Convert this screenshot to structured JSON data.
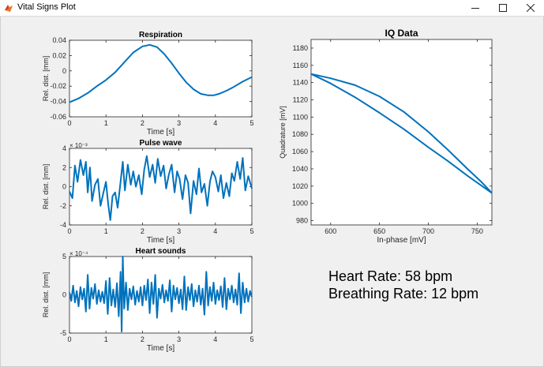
{
  "window": {
    "title": "Vital Signs Plot",
    "buttons": [
      "minimize",
      "maximize",
      "close"
    ]
  },
  "colors": {
    "line": "#0072bd",
    "axes_bg": "#ffffff",
    "figure_bg": "#f0f0f0"
  },
  "readouts": {
    "heart_rate": "Heart Rate: 58 bpm",
    "breathing_rate": "Breathing Rate: 12 bpm"
  },
  "chart_data": [
    {
      "id": "respiration",
      "type": "line",
      "title": "Respiration",
      "xlabel": "Time [s]",
      "ylabel": "Rel. dist. [mm]",
      "xlim": [
        0,
        5
      ],
      "ylim": [
        -0.06,
        0.04
      ],
      "xticks": [
        0,
        1,
        2,
        3,
        4,
        5
      ],
      "xtick_labels": [
        "0",
        "1",
        "2",
        "3",
        "4",
        "5"
      ],
      "yticks": [
        -0.06,
        -0.04,
        -0.02,
        0,
        0.02,
        0.04
      ],
      "ytick_labels": [
        "-0.06",
        "-0.04",
        "-0.02",
        "0",
        "0.02",
        "0.04"
      ],
      "exponent": "",
      "series": [
        {
          "x": [
            0,
            0.25,
            0.5,
            0.75,
            1.0,
            1.25,
            1.5,
            1.75,
            2.0,
            2.2,
            2.4,
            2.6,
            2.8,
            3.0,
            3.2,
            3.4,
            3.6,
            3.8,
            3.95,
            4.1,
            4.3,
            4.5,
            4.75,
            5.0
          ],
          "y": [
            -0.041,
            -0.036,
            -0.029,
            -0.02,
            -0.012,
            -0.002,
            0.011,
            0.024,
            0.032,
            0.034,
            0.031,
            0.022,
            0.01,
            -0.003,
            -0.015,
            -0.024,
            -0.03,
            -0.032,
            -0.032,
            -0.03,
            -0.026,
            -0.021,
            -0.014,
            -0.008
          ]
        }
      ]
    },
    {
      "id": "pulse-wave",
      "type": "line",
      "title": "Pulse wave",
      "xlabel": "Time [s]",
      "ylabel": "Rel. dist. [mm]",
      "xlim": [
        0,
        5
      ],
      "ylim": [
        -4,
        4
      ],
      "xticks": [
        0,
        1,
        2,
        3,
        4,
        5
      ],
      "xtick_labels": [
        "0",
        "1",
        "2",
        "3",
        "4",
        "5"
      ],
      "yticks": [
        -4,
        -2,
        0,
        2,
        4
      ],
      "ytick_labels": [
        "-4",
        "-2",
        "0",
        "2",
        "4"
      ],
      "exponent": "× 10⁻³",
      "series": [
        {
          "x": [
            0,
            0.08,
            0.15,
            0.22,
            0.3,
            0.38,
            0.45,
            0.5,
            0.56,
            0.62,
            0.7,
            0.78,
            0.85,
            0.92,
            1.0,
            1.06,
            1.12,
            1.18,
            1.25,
            1.32,
            1.4,
            1.46,
            1.52,
            1.6,
            1.68,
            1.75,
            1.82,
            1.9,
            1.98,
            2.05,
            2.12,
            2.2,
            2.28,
            2.35,
            2.42,
            2.5,
            2.58,
            2.65,
            2.72,
            2.8,
            2.88,
            2.95,
            3.02,
            3.1,
            3.18,
            3.25,
            3.32,
            3.4,
            3.48,
            3.55,
            3.62,
            3.7,
            3.78,
            3.85,
            3.92,
            4.0,
            4.08,
            4.15,
            4.22,
            4.3,
            4.38,
            4.45,
            4.52,
            4.6,
            4.68,
            4.75,
            4.82,
            4.9,
            5.0
          ],
          "y": [
            -0.5,
            -1.2,
            2.2,
            0.5,
            2.8,
            1.2,
            2.6,
            -0.6,
            2.0,
            -1.5,
            0.2,
            0.8,
            -2.0,
            -0.8,
            0.5,
            -1.8,
            -3.5,
            -1.0,
            -0.6,
            -2.2,
            0.5,
            2.6,
            -0.4,
            2.3,
            0.2,
            1.6,
            0.0,
            1.2,
            -0.8,
            1.8,
            3.2,
            1.0,
            2.3,
            0.4,
            2.9,
            1.1,
            2.2,
            -0.2,
            1.2,
            2.3,
            -0.6,
            1.6,
            0.8,
            -1.3,
            1.2,
            0.4,
            -2.8,
            0.6,
            -0.8,
            1.9,
            -0.6,
            0.3,
            -2.0,
            0.5,
            1.6,
            1.0,
            -0.5,
            1.2,
            -1.2,
            0.4,
            -1.0,
            1.4,
            0.6,
            2.6,
            0.8,
            3.0,
            -0.4,
            1.1,
            -0.2
          ]
        }
      ]
    },
    {
      "id": "heart-sounds",
      "type": "line",
      "title": "Heart sounds",
      "xlabel": "Time [s]",
      "ylabel": "Rel. dist. [mm]",
      "xlim": [
        0,
        5
      ],
      "ylim": [
        -5,
        5
      ],
      "xticks": [
        0,
        1,
        2,
        3,
        4,
        5
      ],
      "xtick_labels": [
        "0",
        "1",
        "2",
        "3",
        "4",
        "5"
      ],
      "yticks": [
        -5,
        0,
        5
      ],
      "ytick_labels": [
        "-5",
        "0",
        "5"
      ],
      "exponent": "× 10⁻⁴",
      "series": [
        {
          "x": [
            0,
            0.05,
            0.1,
            0.15,
            0.2,
            0.25,
            0.3,
            0.35,
            0.4,
            0.45,
            0.5,
            0.55,
            0.6,
            0.65,
            0.7,
            0.75,
            0.8,
            0.85,
            0.9,
            0.95,
            1.0,
            1.05,
            1.1,
            1.15,
            1.2,
            1.25,
            1.3,
            1.35,
            1.4,
            1.43,
            1.46,
            1.5,
            1.55,
            1.6,
            1.65,
            1.7,
            1.75,
            1.8,
            1.85,
            1.9,
            1.95,
            2.0,
            2.05,
            2.1,
            2.15,
            2.2,
            2.25,
            2.3,
            2.35,
            2.4,
            2.45,
            2.5,
            2.55,
            2.6,
            2.65,
            2.7,
            2.75,
            2.8,
            2.85,
            2.9,
            2.95,
            3.0,
            3.05,
            3.1,
            3.15,
            3.2,
            3.25,
            3.3,
            3.35,
            3.4,
            3.45,
            3.5,
            3.55,
            3.6,
            3.65,
            3.7,
            3.75,
            3.8,
            3.85,
            3.9,
            3.95,
            4.0,
            4.05,
            4.1,
            4.15,
            4.2,
            4.25,
            4.3,
            4.35,
            4.4,
            4.45,
            4.5,
            4.55,
            4.6,
            4.65,
            4.7,
            4.75,
            4.8,
            4.85,
            4.9,
            4.95,
            5.0
          ],
          "y": [
            0.3,
            -0.8,
            1.2,
            -1.0,
            0.5,
            -1.5,
            1.0,
            -0.6,
            0.8,
            -2.2,
            2.6,
            -1.8,
            0.9,
            -0.5,
            1.4,
            -1.2,
            0.6,
            -0.9,
            0.4,
            -1.1,
            1.8,
            -2.5,
            2.2,
            -1.4,
            0.7,
            -1.6,
            1.5,
            -2.8,
            3.0,
            -4.8,
            5.0,
            -1.8,
            1.6,
            -2.0,
            0.8,
            -0.6,
            1.1,
            -1.3,
            0.5,
            -0.9,
            1.0,
            -1.4,
            1.2,
            -0.7,
            2.0,
            -2.4,
            1.6,
            -1.2,
            2.6,
            -3.0,
            0.8,
            -0.5,
            1.3,
            -1.0,
            0.6,
            -0.8,
            1.9,
            -2.2,
            1.2,
            -0.6,
            0.9,
            -1.1,
            0.7,
            -1.9,
            2.4,
            -2.0,
            1.0,
            -0.7,
            1.4,
            -1.5,
            0.6,
            -0.9,
            1.2,
            -1.3,
            0.8,
            -2.6,
            3.0,
            -1.4,
            1.0,
            -0.8,
            1.6,
            -1.2,
            0.6,
            -0.7,
            1.1,
            -1.6,
            2.2,
            -1.9,
            0.8,
            -0.6,
            1.2,
            -1.0,
            0.7,
            -1.3,
            2.8,
            -2.4,
            1.6,
            -1.0,
            0.8,
            -0.9,
            0.5,
            -0.3
          ]
        }
      ]
    },
    {
      "id": "iq-data",
      "type": "line",
      "title": "IQ Data",
      "xlabel": "In-phase [mV]",
      "ylabel": "Quadrature [mV]",
      "xlim": [
        580,
        765
      ],
      "ylim": [
        975,
        1190
      ],
      "xticks": [
        600,
        650,
        700,
        750
      ],
      "xtick_labels": [
        "600",
        "650",
        "700",
        "750"
      ],
      "yticks": [
        980,
        1000,
        1020,
        1040,
        1060,
        1080,
        1100,
        1120,
        1140,
        1160,
        1180
      ],
      "ytick_labels": [
        "980",
        "1000",
        "1020",
        "1040",
        "1060",
        "1080",
        "1100",
        "1120",
        "1140",
        "1160",
        "1180"
      ],
      "exponent": "",
      "series": [
        {
          "x": [
            580,
            600,
            625,
            650,
            675,
            700,
            720,
            740,
            755,
            765
          ],
          "y": [
            1150,
            1145,
            1137,
            1124,
            1106,
            1083,
            1062,
            1040,
            1024,
            1012
          ]
        },
        {
          "x": [
            580,
            600,
            625,
            650,
            675,
            700,
            720,
            740,
            755,
            765
          ],
          "y": [
            1150,
            1139,
            1123,
            1105,
            1086,
            1065,
            1049,
            1032,
            1020,
            1012
          ]
        }
      ]
    }
  ]
}
